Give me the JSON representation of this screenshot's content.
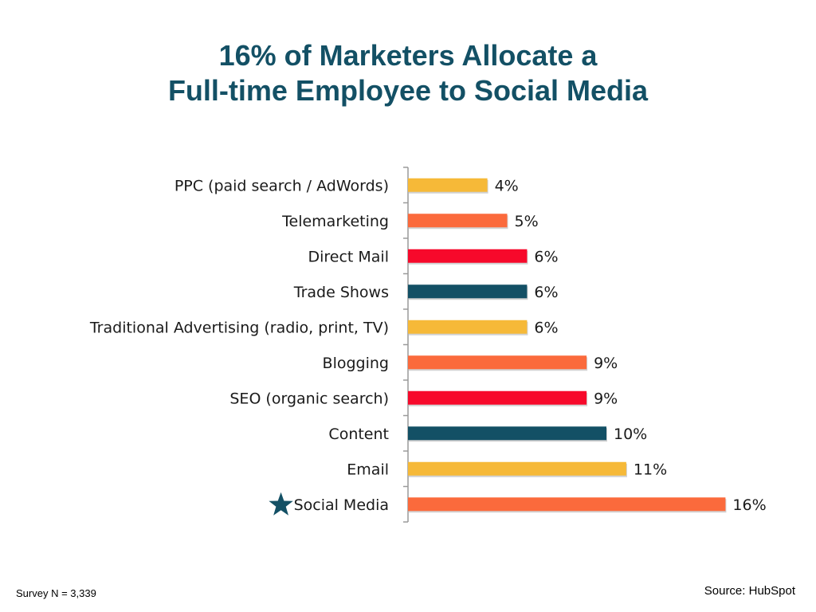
{
  "title": {
    "line1": "16% of Marketers Allocate a",
    "line2": "Full-time Employee to Social Media"
  },
  "footer": {
    "survey": "Survey N = 3,339",
    "source": "Source: HubSpot"
  },
  "chart_data": {
    "type": "bar",
    "orientation": "horizontal",
    "categories": [
      "PPC (paid search / AdWords)",
      "Telemarketing",
      "Direct Mail",
      "Trade Shows",
      "Traditional Advertising (radio, print, TV)",
      "Blogging",
      "SEO (organic search)",
      "Content",
      "Email",
      "Social Media"
    ],
    "values": [
      4,
      5,
      6,
      6,
      6,
      9,
      9,
      10,
      11,
      16
    ],
    "value_labels": [
      "4%",
      "5%",
      "6%",
      "6%",
      "6%",
      "9%",
      "9%",
      "10%",
      "11%",
      "16%"
    ],
    "colors": [
      "#f6b938",
      "#fb6a3c",
      "#f7092b",
      "#135065",
      "#f6b938",
      "#fb6a3c",
      "#f7092b",
      "#135065",
      "#f6b938",
      "#fb6a3c"
    ],
    "highlight_category": "Social Media",
    "highlight_icon": "star-icon",
    "highlight_color": "#135065",
    "xlim": [
      0,
      16
    ],
    "grid": false,
    "legend": "none"
  }
}
